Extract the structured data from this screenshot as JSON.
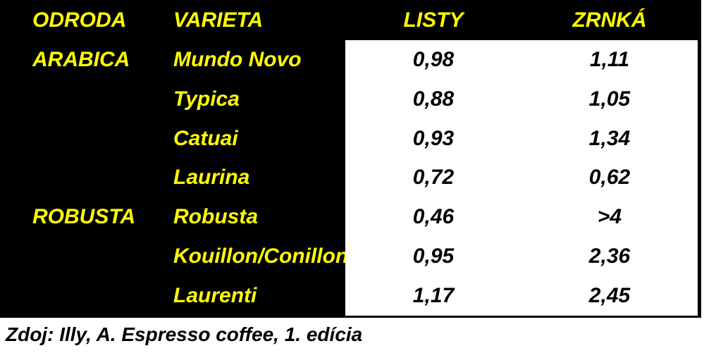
{
  "chart_data": {
    "type": "table",
    "columns": [
      "ODRODA",
      "VARIETA",
      "LISTY",
      "ZRNKÁ"
    ],
    "rows": [
      [
        "ARABICA",
        "Mundo Novo",
        "0,98",
        "1,11"
      ],
      [
        "",
        "Typica",
        "0,88",
        "1,05"
      ],
      [
        "",
        "Catuai",
        "0,93",
        "1,34"
      ],
      [
        "",
        "Laurina",
        "0,72",
        "0,62"
      ],
      [
        "ROBUSTA",
        "Robusta",
        "0,46",
        ">4"
      ],
      [
        "",
        "Kouillon/Conillon",
        "0,95",
        "2,36"
      ],
      [
        "",
        "Laurenti",
        "1,17",
        "2,45"
      ]
    ],
    "source_note": "Zdoj: Illy, A. Espresso coffee, 1. edícia",
    "layout_hints": {
      "header_background": "#000000",
      "header_text_color": "#ffff00",
      "species_variety_text_color": "#ffff00",
      "values_background": "#ffffff",
      "values_text_color": "#000000"
    }
  }
}
